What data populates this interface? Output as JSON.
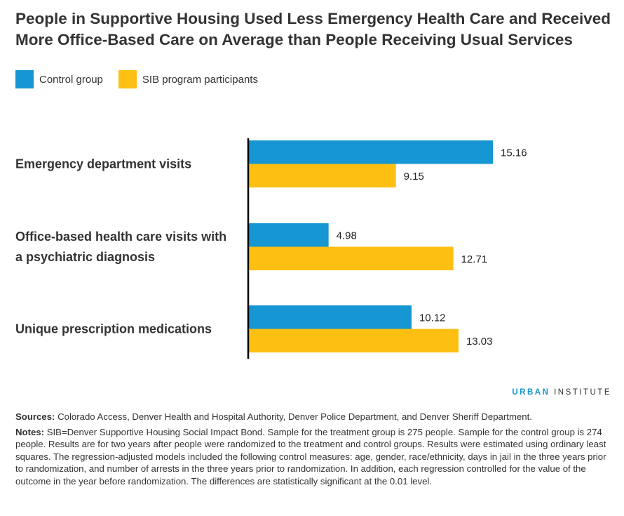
{
  "title": "People in Supportive Housing Used Less Emergency Health Care and Received More Office-Based Care on Average than People Receiving Usual Services",
  "brand": {
    "part1": "URBAN",
    "part2": "INSTITUTE"
  },
  "sources_label": "Sources:",
  "sources_text": "Colorado Access, Denver Health and Hospital Authority, Denver Police Department, and Denver Sheriff Department.",
  "notes_label": "Notes:",
  "notes_text": "SIB=Denver Supportive Housing Social Impact Bond. Sample for the treatment group is 275 people. Sample for the control group is 274 people. Results are for two years after people were randomized to the treatment and control groups. Results were estimated using ordinary least squares. The regression-adjusted models included the following control measures: age, gender, race/ethnicity, days in jail in the three years prior to randomization, and number of arrests in the three years prior to randomization. In addition, each regression controlled for the value of the outcome in the year before randomization. The differences are statistically significant at the 0.01 level.",
  "chart_data": {
    "type": "bar",
    "orientation": "horizontal",
    "categories": [
      [
        "Emergency department visits"
      ],
      [
        "Office-based health care visits with",
        "a psychiatric diagnosis"
      ],
      [
        "Unique prescription medications"
      ]
    ],
    "series": [
      {
        "name": "Control group",
        "color": "#1696d2",
        "values": [
          15.16,
          4.98,
          10.12
        ],
        "labels": [
          "15.16",
          "4.98",
          "10.12"
        ]
      },
      {
        "name": "SIB program participants",
        "color": "#fdbf11",
        "values": [
          9.15,
          12.71,
          13.03
        ],
        "labels": [
          "9.15",
          "12.71",
          "13.03"
        ]
      }
    ],
    "xlim": [
      0,
      15.16
    ],
    "grid": false,
    "legend_position": "top-left"
  }
}
